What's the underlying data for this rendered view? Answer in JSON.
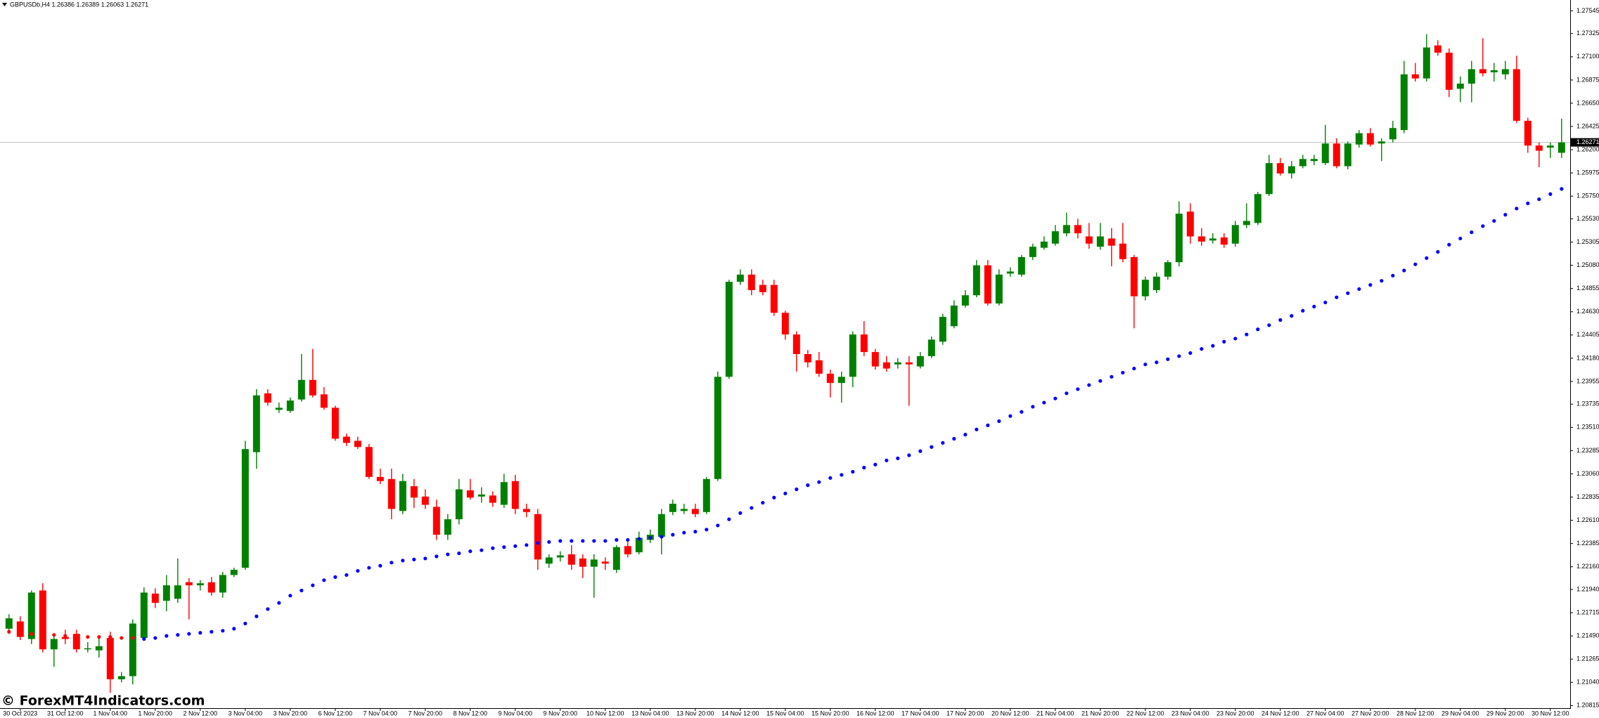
{
  "chart_data": {
    "type": "candlestick",
    "title": "GBPUSDb,H4 1.26386 1.26389 1.26063 1.26271",
    "watermark": "© ForexMT4Indicators.com",
    "categories": [
      null,
      "30 Oct 2023",
      null,
      null,
      null,
      "31 Oct 12:00",
      null,
      null,
      null,
      "1 Nov 04:00",
      null,
      null,
      null,
      "1 Nov 20:00",
      null,
      null,
      null,
      "2 Nov 12:00",
      null,
      null,
      null,
      "3 Nov 04:00",
      null,
      null,
      null,
      "3 Nov 20:00",
      null,
      null,
      null,
      "6 Nov 12:00",
      null,
      null,
      null,
      "7 Nov 04:00",
      null,
      null,
      null,
      "7 Nov 20:00",
      null,
      null,
      null,
      "8 Nov 12:00",
      null,
      null,
      null,
      "9 Nov 04:00",
      null,
      null,
      null,
      "9 Nov 20:00",
      null,
      null,
      null,
      "10 Nov 12:00",
      null,
      null,
      null,
      "13 Nov 04:00",
      null,
      null,
      null,
      "13 Nov 20:00",
      null,
      null,
      null,
      "14 Nov 12:00",
      null,
      null,
      null,
      "15 Nov 04:00",
      null,
      null,
      null,
      "15 Nov 20:00",
      null,
      null,
      null,
      "16 Nov 12:00",
      null,
      null,
      null,
      "17 Nov 04:00",
      null,
      null,
      null,
      "17 Nov 20:00",
      null,
      null,
      null,
      "20 Nov 12:00",
      null,
      null,
      null,
      "21 Nov 04:00",
      null,
      null,
      null,
      "21 Nov 20:00",
      null,
      null,
      null,
      "22 Nov 12:00",
      null,
      null,
      null,
      "23 Nov 04:00",
      null,
      null,
      null,
      "23 Nov 20:00",
      null,
      null,
      null,
      "24 Nov 12:00",
      null,
      null,
      null,
      "27 Nov 04:00",
      null,
      null,
      null,
      "27 Nov 20:00",
      null,
      null,
      null,
      "28 Nov 12:00",
      null,
      null,
      null,
      "29 Nov 04:00",
      null,
      null,
      null,
      "29 Nov 20:00",
      null,
      null,
      null,
      "30 Nov 12:00",
      null
    ],
    "open": [
      1.2156,
      1.2163,
      1.2146,
      1.2193,
      1.2136,
      1.2148,
      1.2151,
      1.2136,
      1.2135,
      1.2147,
      1.2107,
      1.211,
      1.2147,
      1.219,
      1.2183,
      1.2185,
      1.2201,
      1.2198,
      1.2201,
      1.2191,
      1.2208,
      1.2215,
      1.2327,
      1.2384,
      1.2368,
      1.2367,
      1.2378,
      1.2397,
      1.2383,
      1.237,
      1.2342,
      1.2338,
      1.2332,
      1.2303,
      1.2301,
      1.227,
      1.2294,
      1.2284,
      1.2274,
      1.2247,
      1.2262,
      1.229,
      1.2284,
      1.2285,
      1.2276,
      1.2299,
      1.2272,
      1.2267,
      1.2219,
      1.2225,
      1.2228,
      1.2224,
      1.2216,
      1.2221,
      1.2213,
      1.2236,
      1.223,
      1.2242,
      1.2245,
      1.2269,
      1.227,
      1.2272,
      1.2269,
      1.2301,
      1.24,
      1.2492,
      1.2499,
      1.2489,
      1.2489,
      1.2462,
      1.2441,
      1.2422,
      1.2416,
      1.2403,
      1.2394,
      1.24,
      1.2441,
      1.2424,
      1.2414,
      1.2412,
      1.2414,
      1.241,
      1.242,
      1.2434,
      1.2449,
      1.2469,
      1.2479,
      1.2508,
      1.2471,
      1.25,
      1.2499,
      1.2516,
      1.2525,
      1.2529,
      1.2539,
      1.2547,
      1.2536,
      1.2526,
      1.2534,
      1.2529,
      1.2516,
      1.2478,
      1.2484,
      1.2497,
      1.2511,
      1.256,
      1.2536,
      1.2532,
      1.2535,
      1.2529,
      1.2547,
      1.2549,
      1.2577,
      1.2607,
      1.2597,
      1.2604,
      1.2609,
      1.2607,
      1.2626,
      1.2604,
      1.2625,
      1.2636,
      1.2626,
      1.263,
      1.2639,
      1.2693,
      1.2689,
      1.2721,
      1.2714,
      1.2679,
      1.2684,
      1.2698,
      1.2695,
      1.2693,
      1.2698,
      1.2648,
      1.2624,
      1.2622,
      1.2617
    ],
    "high": [
      1.217,
      1.2168,
      1.2193,
      1.22,
      1.2151,
      1.2155,
      1.2155,
      1.2143,
      1.2148,
      1.2153,
      1.2114,
      1.2165,
      1.2196,
      1.2195,
      1.2208,
      1.2224,
      1.2205,
      1.2203,
      1.2206,
      1.2211,
      1.2215,
      1.2338,
      1.2388,
      1.2388,
      1.2375,
      1.238,
      1.2422,
      1.2427,
      1.239,
      1.2372,
      1.2345,
      1.2342,
      1.2335,
      1.2311,
      1.2311,
      1.2306,
      1.2301,
      1.2291,
      1.2281,
      1.2267,
      1.2301,
      1.2301,
      1.2293,
      1.2289,
      1.2306,
      1.2305,
      1.2277,
      1.2272,
      1.2228,
      1.2231,
      1.2237,
      1.2228,
      1.2228,
      1.2225,
      1.2237,
      1.224,
      1.225,
      1.2252,
      1.2272,
      1.2281,
      1.2277,
      1.2277,
      1.2303,
      1.2405,
      1.2494,
      1.2504,
      1.2504,
      1.2494,
      1.2494,
      1.2464,
      1.2444,
      1.2426,
      1.2424,
      1.2407,
      1.2405,
      1.2444,
      1.2454,
      1.2427,
      1.242,
      1.2418,
      1.242,
      1.2424,
      1.2439,
      1.2461,
      1.2474,
      1.2484,
      1.2513,
      1.2513,
      1.2504,
      1.2506,
      1.2518,
      1.2529,
      1.2536,
      1.2547,
      1.2559,
      1.2553,
      1.2549,
      1.2549,
      1.2544,
      1.2549,
      1.2518,
      1.2497,
      1.2501,
      1.2513,
      1.257,
      1.2568,
      1.2544,
      1.2539,
      1.2539,
      1.2551,
      1.2568,
      1.2579,
      1.2615,
      1.2612,
      1.2609,
      1.2615,
      1.2615,
      1.2644,
      1.2631,
      1.2628,
      1.2639,
      1.2641,
      1.2631,
      1.2648,
      1.2706,
      1.2704,
      1.2732,
      1.2726,
      1.2718,
      1.2691,
      1.2706,
      1.2728,
      1.2704,
      1.2706,
      1.2711,
      1.2651,
      1.2627,
      1.2627,
      1.265
    ],
    "low": [
      1.2151,
      1.2145,
      1.2141,
      1.2133,
      1.2119,
      1.2141,
      1.2133,
      1.2133,
      1.2128,
      1.2094,
      1.2104,
      1.2102,
      1.2145,
      1.2176,
      1.2173,
      1.2181,
      1.2165,
      1.2193,
      1.2188,
      1.2186,
      1.2206,
      1.2213,
      1.2311,
      1.2372,
      1.2365,
      1.2365,
      1.2376,
      1.238,
      1.2368,
      1.2338,
      1.2333,
      1.233,
      1.2301,
      1.2296,
      1.2262,
      1.2267,
      1.2273,
      1.2272,
      1.2242,
      1.2242,
      1.2257,
      1.2281,
      1.2278,
      1.2274,
      1.2273,
      1.2267,
      1.2264,
      1.2213,
      1.2215,
      1.2221,
      1.2213,
      1.2205,
      1.2186,
      1.2213,
      1.221,
      1.2225,
      1.2228,
      1.2239,
      1.2228,
      1.2266,
      1.2267,
      1.2264,
      1.2267,
      1.2299,
      1.2398,
      1.2489,
      1.2479,
      1.2479,
      1.2459,
      1.2436,
      1.2405,
      1.2409,
      1.24,
      1.238,
      1.2375,
      1.239,
      1.242,
      1.2407,
      1.2405,
      1.2408,
      1.2372,
      1.2408,
      1.2418,
      1.2431,
      1.2447,
      1.2467,
      1.2477,
      1.2469,
      1.2469,
      1.2497,
      1.2497,
      1.2513,
      1.2523,
      1.2527,
      1.2536,
      1.2534,
      1.2524,
      1.2523,
      1.2507,
      1.2511,
      1.2447,
      1.2474,
      1.2481,
      1.2494,
      1.2507,
      1.2529,
      1.2527,
      1.2529,
      1.2525,
      1.2526,
      1.2544,
      1.2547,
      1.2575,
      1.2595,
      1.2592,
      1.2602,
      1.2605,
      1.2605,
      1.2602,
      1.2601,
      1.2622,
      1.2623,
      1.2609,
      1.2627,
      1.2636,
      1.2686,
      1.2686,
      1.2711,
      1.2671,
      1.2666,
      1.2666,
      1.2691,
      1.2686,
      1.2688,
      1.2646,
      1.2617,
      1.2603,
      1.2612,
      1.2612
    ],
    "close": [
      1.2166,
      1.2148,
      1.2191,
      1.2136,
      1.2146,
      1.2146,
      1.2136,
      1.2137,
      1.2139,
      1.2107,
      1.211,
      1.2161,
      1.2191,
      1.2181,
      1.2198,
      1.2198,
      1.2198,
      1.22,
      1.2191,
      1.2208,
      1.2213,
      1.233,
      1.2382,
      1.2375,
      1.237,
      1.2377,
      1.2397,
      1.2382,
      1.237,
      1.234,
      1.2336,
      1.2332,
      1.2303,
      1.2299,
      1.2272,
      1.2299,
      1.2283,
      1.2276,
      1.2247,
      1.2262,
      1.2291,
      1.2283,
      1.2286,
      1.2278,
      1.2298,
      1.2272,
      1.2269,
      1.2223,
      1.2225,
      1.2227,
      1.2218,
      1.2216,
      1.2223,
      1.2219,
      1.2235,
      1.2228,
      1.2244,
      1.2247,
      1.2267,
      1.2277,
      1.2272,
      1.2267,
      1.2301,
      1.24,
      1.2492,
      1.2499,
      1.2484,
      1.2482,
      1.2462,
      1.2441,
      1.2422,
      1.2414,
      1.2403,
      1.2394,
      1.24,
      1.2441,
      1.2424,
      1.241,
      1.2408,
      1.2414,
      1.2412,
      1.242,
      1.2436,
      1.2458,
      1.2469,
      1.2479,
      1.2508,
      1.2471,
      1.2499,
      1.2502,
      1.2516,
      1.2526,
      1.2531,
      1.2541,
      1.2547,
      1.2539,
      1.2529,
      1.2536,
      1.2527,
      1.2514,
      1.2478,
      1.2494,
      1.2497,
      1.2511,
      1.2558,
      1.2536,
      1.2531,
      1.2534,
      1.2528,
      1.2547,
      1.2551,
      1.2577,
      1.2607,
      1.2597,
      1.2604,
      1.2611,
      1.2611,
      1.2626,
      1.2604,
      1.2626,
      1.2636,
      1.2625,
      1.2628,
      1.2641,
      1.2693,
      1.2689,
      1.2719,
      1.2714,
      1.2678,
      1.2684,
      1.2698,
      1.2694,
      1.2697,
      1.2698,
      1.2648,
      1.2624,
      1.2619,
      1.2624,
      1.2627
    ],
    "up_color": "#008000",
    "down_color": "#ff0000",
    "indicators": [
      {
        "color": "#ff0000",
        "values": [
          1.2153,
          1.2152,
          1.2151,
          1.215,
          1.215,
          1.2149,
          1.2149,
          1.2148,
          1.2148,
          1.2148,
          1.2147,
          1.2147,
          null,
          null,
          null,
          null,
          null,
          null,
          null,
          null,
          null,
          null,
          null,
          null,
          null,
          null,
          null,
          null,
          null,
          null,
          null,
          null,
          null,
          null,
          null,
          null,
          null,
          null,
          null,
          null,
          null,
          null,
          null,
          null,
          null,
          null,
          null,
          null,
          null,
          null,
          null,
          null,
          null,
          null,
          null,
          null,
          null,
          null,
          null,
          null,
          null,
          null,
          null,
          null,
          null,
          null,
          null,
          null,
          null,
          null,
          null,
          null,
          null,
          null,
          null,
          null,
          null,
          null,
          null,
          null,
          null,
          null,
          null,
          null,
          null,
          null,
          null,
          null,
          null,
          null,
          null,
          null,
          null,
          null,
          null,
          null,
          null,
          null,
          null,
          null,
          null,
          null,
          null,
          null,
          null,
          null,
          null,
          null,
          null,
          null,
          null,
          null,
          null,
          null,
          null,
          null,
          null,
          null,
          null,
          null,
          null,
          null,
          null,
          null,
          null,
          null,
          null,
          null,
          null,
          null,
          null,
          null,
          null,
          null,
          null,
          null,
          null,
          null,
          null
        ]
      },
      {
        "color": "#0000ff",
        "values": [
          null,
          null,
          null,
          null,
          null,
          null,
          null,
          null,
          null,
          null,
          null,
          null,
          1.2146,
          1.2147,
          1.2149,
          1.215,
          1.2151,
          1.2152,
          1.2153,
          1.2154,
          1.2156,
          1.2161,
          1.2168,
          1.2175,
          1.2181,
          1.2188,
          1.2193,
          1.2198,
          1.2203,
          1.2206,
          1.2208,
          1.2212,
          1.2215,
          1.2217,
          1.222,
          1.2222,
          1.2223,
          1.2224,
          1.2226,
          1.2228,
          1.2229,
          1.2231,
          1.2232,
          1.2234,
          1.2235,
          1.2236,
          1.2237,
          1.2239,
          1.224,
          1.2241,
          1.2241,
          1.2241,
          1.2241,
          1.2241,
          1.2242,
          1.2242,
          1.2243,
          1.2244,
          1.2245,
          1.2247,
          1.2249,
          1.225,
          1.2252,
          1.2256,
          1.2262,
          1.2268,
          1.2273,
          1.2278,
          1.2283,
          1.2287,
          1.2291,
          1.2295,
          1.2298,
          1.2302,
          1.2305,
          1.2308,
          1.2312,
          1.2315,
          1.2319,
          1.2321,
          1.2324,
          1.2328,
          1.2332,
          1.2336,
          1.234,
          1.2344,
          1.2349,
          1.2353,
          1.2357,
          1.2362,
          1.2366,
          1.2371,
          1.2375,
          1.2379,
          1.2384,
          1.2388,
          1.2392,
          1.2396,
          1.24,
          1.2404,
          1.2408,
          1.2412,
          1.2414,
          1.2417,
          1.242,
          1.2423,
          1.2427,
          1.243,
          1.2434,
          1.2437,
          1.2441,
          1.2446,
          1.245,
          1.2455,
          1.2459,
          1.2464,
          1.2468,
          1.2472,
          1.2477,
          1.2481,
          1.2485,
          1.2489,
          1.2493,
          1.2498,
          1.2503,
          1.2509,
          1.2515,
          1.2521,
          1.2528,
          1.2534,
          1.254,
          1.2546,
          1.2551,
          1.2557,
          1.2563,
          1.2568,
          1.2572,
          1.2577,
          1.2582
        ]
      }
    ],
    "current_price": 1.26271,
    "ylim": [
      1.2079,
      1.2765
    ],
    "yticks": [
      1.27545,
      1.27325,
      {
        "value": 1.271,
        "label": "1.27100"
      },
      1.26875,
      {
        "value": 1.2665,
        "label": "1.26650"
      },
      1.26425,
      {
        "value": 1.262,
        "label": "1.26200"
      },
      1.25975,
      {
        "value": 1.2575,
        "label": "1.25750"
      },
      {
        "value": 1.2553,
        "label": "1.25530"
      },
      1.25305,
      {
        "value": 1.2508,
        "label": "1.25080"
      },
      1.24855,
      {
        "value": 1.2463,
        "label": "1.24630"
      },
      1.24405,
      {
        "value": 1.2418,
        "label": "1.24180"
      },
      1.23955,
      1.23735,
      {
        "value": 1.2351,
        "label": "1.23510"
      },
      1.23285,
      {
        "value": 1.2306,
        "label": "1.23060"
      },
      1.22835,
      {
        "value": 1.2261,
        "label": "1.22610"
      },
      1.22385,
      {
        "value": 1.2216,
        "label": "1.22160"
      },
      {
        "value": 1.2194,
        "label": "1.21940"
      },
      1.21715,
      {
        "value": 1.2149,
        "label": "1.21490"
      },
      1.21265,
      {
        "value": 1.2104,
        "label": "1.21040"
      },
      1.20815
    ]
  }
}
